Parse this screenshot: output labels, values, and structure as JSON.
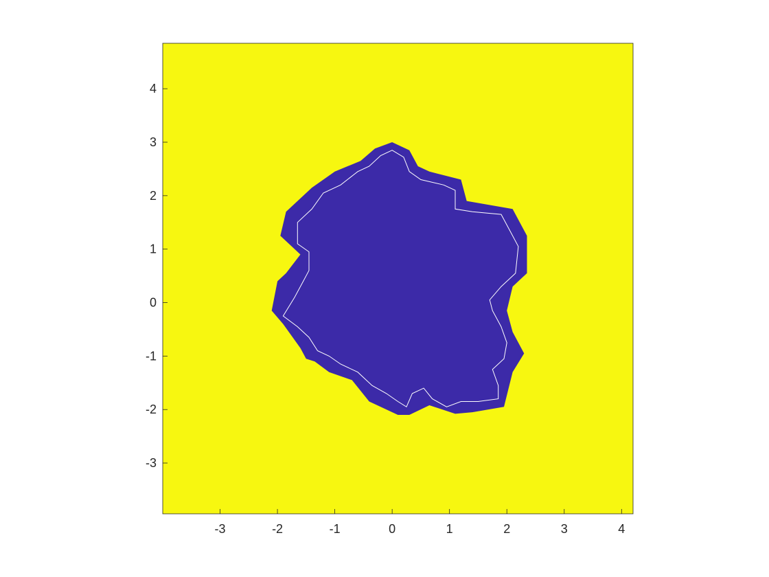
{
  "chart_data": {
    "type": "heatmap",
    "title": "",
    "xlabel": "",
    "ylabel": "",
    "xlim": [
      -4,
      4.2
    ],
    "ylim": [
      -3.95,
      4.85
    ],
    "xticks": [
      -3,
      -2,
      -1,
      0,
      1,
      2,
      3,
      4
    ],
    "xtick_labels": [
      "-3",
      "-2",
      "-1",
      "0",
      "1",
      "2",
      "3",
      "4"
    ],
    "yticks": [
      4,
      3,
      2,
      1,
      0,
      -1,
      -2,
      -3
    ],
    "ytick_labels": [
      "4",
      "3",
      "2",
      "1",
      "0",
      "-1",
      "-2",
      "-3"
    ],
    "grid": false,
    "colors": {
      "background_region": "#f7f710",
      "inner_region": "#3c2aa8",
      "contour_line": "#ffffff",
      "axis": "#262626"
    },
    "region_outline": [
      [
        0,
        3.0
      ],
      [
        0.3,
        2.85
      ],
      [
        0.45,
        2.55
      ],
      [
        0.65,
        2.45
      ],
      [
        1.2,
        2.3
      ],
      [
        1.3,
        1.9
      ],
      [
        2.1,
        1.75
      ],
      [
        2.35,
        1.25
      ],
      [
        2.35,
        0.55
      ],
      [
        2.1,
        0.3
      ],
      [
        2.0,
        -0.15
      ],
      [
        2.1,
        -0.55
      ],
      [
        2.3,
        -0.95
      ],
      [
        2.1,
        -1.3
      ],
      [
        1.95,
        -1.95
      ],
      [
        1.4,
        -2.05
      ],
      [
        1.1,
        -2.08
      ],
      [
        0.65,
        -1.92
      ],
      [
        0.3,
        -2.1
      ],
      [
        0.1,
        -2.1
      ],
      [
        -0.4,
        -1.85
      ],
      [
        -0.7,
        -1.45
      ],
      [
        -1.1,
        -1.3
      ],
      [
        -1.35,
        -1.1
      ],
      [
        -1.5,
        -1.05
      ],
      [
        -1.6,
        -0.85
      ],
      [
        -1.9,
        -0.4
      ],
      [
        -2.1,
        -0.15
      ],
      [
        -2.0,
        0.4
      ],
      [
        -1.85,
        0.55
      ],
      [
        -1.6,
        0.9
      ],
      [
        -1.95,
        1.25
      ],
      [
        -1.85,
        1.7
      ],
      [
        -1.4,
        2.15
      ],
      [
        -1.0,
        2.45
      ],
      [
        -0.55,
        2.65
      ],
      [
        -0.3,
        2.88
      ]
    ],
    "contour": [
      [
        0,
        2.85
      ],
      [
        0.2,
        2.72
      ],
      [
        0.3,
        2.45
      ],
      [
        0.5,
        2.3
      ],
      [
        0.9,
        2.2
      ],
      [
        1.1,
        2.1
      ],
      [
        1.1,
        1.75
      ],
      [
        1.4,
        1.7
      ],
      [
        1.9,
        1.65
      ],
      [
        2.05,
        1.35
      ],
      [
        2.2,
        1.05
      ],
      [
        2.15,
        0.55
      ],
      [
        1.9,
        0.3
      ],
      [
        1.7,
        0.05
      ],
      [
        1.75,
        -0.15
      ],
      [
        1.9,
        -0.45
      ],
      [
        2.0,
        -0.75
      ],
      [
        1.95,
        -1.05
      ],
      [
        1.75,
        -1.25
      ],
      [
        1.85,
        -1.55
      ],
      [
        1.85,
        -1.8
      ],
      [
        1.5,
        -1.85
      ],
      [
        1.2,
        -1.85
      ],
      [
        0.95,
        -1.95
      ],
      [
        0.7,
        -1.8
      ],
      [
        0.55,
        -1.6
      ],
      [
        0.35,
        -1.7
      ],
      [
        0.25,
        -1.95
      ],
      [
        0.1,
        -1.85
      ],
      [
        -0.1,
        -1.7
      ],
      [
        -0.35,
        -1.55
      ],
      [
        -0.6,
        -1.3
      ],
      [
        -0.9,
        -1.15
      ],
      [
        -1.1,
        -1.0
      ],
      [
        -1.3,
        -0.9
      ],
      [
        -1.45,
        -0.65
      ],
      [
        -1.65,
        -0.45
      ],
      [
        -1.9,
        -0.25
      ],
      [
        -1.7,
        0.1
      ],
      [
        -1.55,
        0.4
      ],
      [
        -1.45,
        0.6
      ],
      [
        -1.45,
        0.95
      ],
      [
        -1.65,
        1.1
      ],
      [
        -1.65,
        1.5
      ],
      [
        -1.4,
        1.75
      ],
      [
        -1.2,
        2.05
      ],
      [
        -0.9,
        2.2
      ],
      [
        -0.6,
        2.45
      ],
      [
        -0.4,
        2.55
      ],
      [
        -0.2,
        2.75
      ]
    ]
  }
}
